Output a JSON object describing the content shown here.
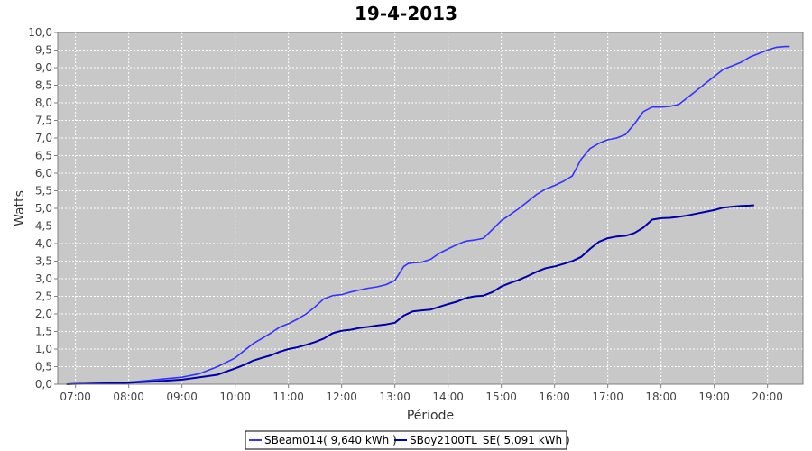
{
  "chart_data": {
    "type": "line",
    "title": "19-4-2013",
    "xlabel": "Période",
    "ylabel": "Watts",
    "xlim": [
      "06:40",
      "20:40"
    ],
    "ylim": [
      0,
      10
    ],
    "x_ticks": [
      "07:00",
      "08:00",
      "09:00",
      "10:00",
      "11:00",
      "12:00",
      "13:00",
      "14:00",
      "15:00",
      "16:00",
      "17:00",
      "18:00",
      "19:00",
      "20:00"
    ],
    "y_ticks": [
      "0,0",
      "0,5",
      "1,0",
      "1,5",
      "2,0",
      "2,5",
      "3,0",
      "3,5",
      "4,0",
      "4,5",
      "5,0",
      "5,5",
      "6,0",
      "6,5",
      "7,0",
      "7,5",
      "8,0",
      "8,5",
      "9,0",
      "9,5",
      "10,0"
    ],
    "grid": true,
    "legend_position": "bottom",
    "colors": {
      "plot_background": "#c8c8c8",
      "grid": "#ffffff"
    },
    "series": [
      {
        "name": "SBeam014( 9,640 kWh )",
        "color": "#3333ff",
        "points": [
          [
            "06:50",
            0
          ],
          [
            "07:00",
            0.01
          ],
          [
            "07:30",
            0.03
          ],
          [
            "08:00",
            0.06
          ],
          [
            "08:20",
            0.1
          ],
          [
            "08:40",
            0.15
          ],
          [
            "09:00",
            0.2
          ],
          [
            "09:20",
            0.3
          ],
          [
            "09:40",
            0.5
          ],
          [
            "10:00",
            0.75
          ],
          [
            "10:10",
            0.95
          ],
          [
            "10:20",
            1.15
          ],
          [
            "10:30",
            1.3
          ],
          [
            "10:40",
            1.45
          ],
          [
            "10:50",
            1.62
          ],
          [
            "11:00",
            1.72
          ],
          [
            "11:10",
            1.85
          ],
          [
            "11:20",
            2.0
          ],
          [
            "11:30",
            2.2
          ],
          [
            "11:40",
            2.43
          ],
          [
            "11:50",
            2.52
          ],
          [
            "12:00",
            2.55
          ],
          [
            "12:10",
            2.62
          ],
          [
            "12:20",
            2.68
          ],
          [
            "12:30",
            2.73
          ],
          [
            "12:40",
            2.77
          ],
          [
            "12:50",
            2.83
          ],
          [
            "13:00",
            2.95
          ],
          [
            "13:05",
            3.15
          ],
          [
            "13:10",
            3.35
          ],
          [
            "13:15",
            3.43
          ],
          [
            "13:20",
            3.45
          ],
          [
            "13:30",
            3.47
          ],
          [
            "13:40",
            3.55
          ],
          [
            "13:50",
            3.72
          ],
          [
            "14:00",
            3.85
          ],
          [
            "14:10",
            3.97
          ],
          [
            "14:20",
            4.07
          ],
          [
            "14:30",
            4.1
          ],
          [
            "14:40",
            4.15
          ],
          [
            "14:50",
            4.4
          ],
          [
            "15:00",
            4.65
          ],
          [
            "15:10",
            4.82
          ],
          [
            "15:20",
            5.0
          ],
          [
            "15:30",
            5.2
          ],
          [
            "15:40",
            5.4
          ],
          [
            "15:50",
            5.55
          ],
          [
            "16:00",
            5.65
          ],
          [
            "16:10",
            5.77
          ],
          [
            "16:20",
            5.92
          ],
          [
            "16:30",
            6.4
          ],
          [
            "16:40",
            6.7
          ],
          [
            "16:50",
            6.85
          ],
          [
            "17:00",
            6.95
          ],
          [
            "17:10",
            7.0
          ],
          [
            "17:20",
            7.1
          ],
          [
            "17:30",
            7.4
          ],
          [
            "17:40",
            7.75
          ],
          [
            "17:50",
            7.88
          ],
          [
            "18:00",
            7.88
          ],
          [
            "18:10",
            7.9
          ],
          [
            "18:20",
            7.95
          ],
          [
            "18:30",
            8.15
          ],
          [
            "18:40",
            8.35
          ],
          [
            "18:50",
            8.55
          ],
          [
            "19:00",
            8.75
          ],
          [
            "19:10",
            8.95
          ],
          [
            "19:20",
            9.05
          ],
          [
            "19:30",
            9.15
          ],
          [
            "19:40",
            9.3
          ],
          [
            "19:50",
            9.4
          ],
          [
            "20:00",
            9.5
          ],
          [
            "20:10",
            9.58
          ],
          [
            "20:20",
            9.6
          ],
          [
            "20:25",
            9.6
          ]
        ]
      },
      {
        "name": "SBoy2100TL_SE( 5,091 kWh )",
        "color": "#0000aa",
        "points": [
          [
            "06:50",
            0
          ],
          [
            "07:00",
            0.01
          ],
          [
            "07:30",
            0.02
          ],
          [
            "08:00",
            0.04
          ],
          [
            "08:30",
            0.08
          ],
          [
            "09:00",
            0.13
          ],
          [
            "09:20",
            0.2
          ],
          [
            "09:40",
            0.27
          ],
          [
            "10:00",
            0.45
          ],
          [
            "10:10",
            0.55
          ],
          [
            "10:20",
            0.67
          ],
          [
            "10:30",
            0.75
          ],
          [
            "10:40",
            0.82
          ],
          [
            "10:50",
            0.92
          ],
          [
            "11:00",
            1.0
          ],
          [
            "11:10",
            1.05
          ],
          [
            "11:20",
            1.12
          ],
          [
            "11:30",
            1.2
          ],
          [
            "11:40",
            1.3
          ],
          [
            "11:50",
            1.45
          ],
          [
            "12:00",
            1.52
          ],
          [
            "12:10",
            1.55
          ],
          [
            "12:20",
            1.6
          ],
          [
            "12:30",
            1.63
          ],
          [
            "12:40",
            1.67
          ],
          [
            "12:50",
            1.7
          ],
          [
            "13:00",
            1.75
          ],
          [
            "13:10",
            1.95
          ],
          [
            "13:20",
            2.07
          ],
          [
            "13:30",
            2.1
          ],
          [
            "13:40",
            2.12
          ],
          [
            "13:50",
            2.2
          ],
          [
            "14:00",
            2.28
          ],
          [
            "14:10",
            2.35
          ],
          [
            "14:20",
            2.45
          ],
          [
            "14:30",
            2.5
          ],
          [
            "14:40",
            2.52
          ],
          [
            "14:50",
            2.62
          ],
          [
            "15:00",
            2.78
          ],
          [
            "15:10",
            2.88
          ],
          [
            "15:20",
            2.97
          ],
          [
            "15:30",
            3.08
          ],
          [
            "15:40",
            3.2
          ],
          [
            "15:50",
            3.3
          ],
          [
            "16:00",
            3.35
          ],
          [
            "16:10",
            3.42
          ],
          [
            "16:20",
            3.5
          ],
          [
            "16:30",
            3.62
          ],
          [
            "16:40",
            3.85
          ],
          [
            "16:50",
            4.05
          ],
          [
            "17:00",
            4.15
          ],
          [
            "17:10",
            4.2
          ],
          [
            "17:20",
            4.22
          ],
          [
            "17:30",
            4.3
          ],
          [
            "17:40",
            4.45
          ],
          [
            "17:50",
            4.68
          ],
          [
            "18:00",
            4.72
          ],
          [
            "18:10",
            4.73
          ],
          [
            "18:20",
            4.76
          ],
          [
            "18:30",
            4.8
          ],
          [
            "18:40",
            4.85
          ],
          [
            "18:50",
            4.9
          ],
          [
            "19:00",
            4.95
          ],
          [
            "19:10",
            5.02
          ],
          [
            "19:20",
            5.05
          ],
          [
            "19:30",
            5.07
          ],
          [
            "19:40",
            5.08
          ],
          [
            "19:45",
            5.09
          ]
        ]
      }
    ]
  }
}
